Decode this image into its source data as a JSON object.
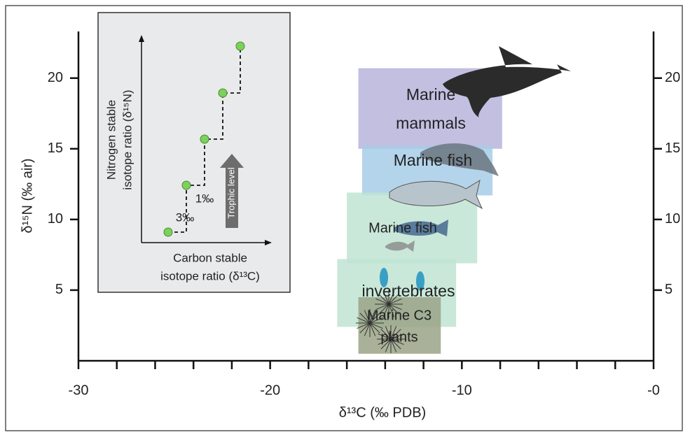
{
  "chart_data": {
    "type": "range",
    "xlabel": "δ¹³C (‰ PDB)",
    "ylabel": "δ¹⁵N (‰ air)",
    "xlim": [
      -30,
      0
    ],
    "ylim": [
      0,
      23.3
    ],
    "xticks": [
      -30,
      -20,
      -10,
      {
        "value": 0,
        "label": "-0"
      }
    ],
    "xminorticks": [
      -28,
      -26,
      -24,
      -22,
      -18,
      -16,
      -14,
      -12,
      -8,
      -6,
      -4,
      -2
    ],
    "yticks": [
      5,
      10,
      15,
      20
    ],
    "right_axis": true,
    "series": [
      {
        "label": [
          "Marine",
          "mammals"
        ],
        "color": "#b7b4dc",
        "x": [
          -15.4,
          -7.9
        ],
        "y": [
          15.0,
          20.7
        ]
      },
      {
        "label": [
          "Marine fish"
        ],
        "color": "#a6cde8",
        "x": [
          -15.2,
          -8.4
        ],
        "y": [
          11.7,
          15.2
        ]
      },
      {
        "label": [
          "Marine fish"
        ],
        "color": "#bfe4d2",
        "x": [
          -16.0,
          -9.2
        ],
        "y": [
          6.9,
          11.9
        ]
      },
      {
        "label": [
          "invertebrates"
        ],
        "color": "#bfe4d2",
        "x": [
          -16.5,
          -10.3
        ],
        "y": [
          2.4,
          7.2
        ]
      },
      {
        "label": [
          "Marine C3",
          "plants"
        ],
        "color": "#9aa386",
        "x": [
          -15.4,
          -11.1
        ],
        "y": [
          0.5,
          4.5
        ]
      }
    ],
    "inset": {
      "y_label": [
        "Nitrogen stable",
        "isotope ratio (δ¹⁵N)"
      ],
      "x_label": [
        "Carbon stable",
        "isotope ratio (δ¹³C)"
      ],
      "arrow_label": "Trophic level",
      "step_labels": [
        "1‰",
        "3‰"
      ]
    }
  }
}
